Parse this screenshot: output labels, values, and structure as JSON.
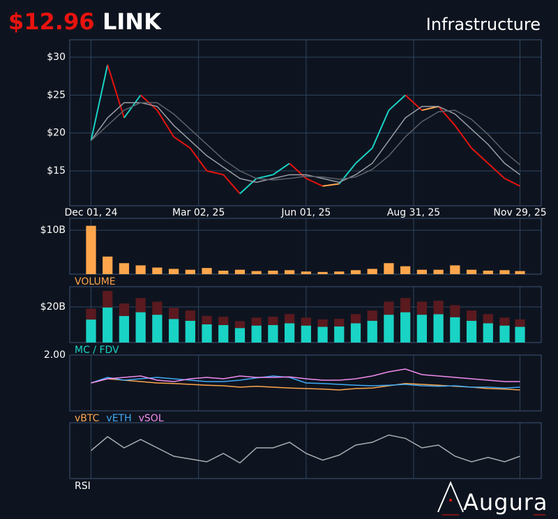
{
  "header": {
    "price": "$12.96",
    "symbol": "LINK",
    "sector": "Infrastructure"
  },
  "logo": "Augura",
  "chart_data": [
    {
      "type": "line",
      "x": [
        "2024-12-01",
        "2024-12-15",
        "2024-12-29",
        "2025-01-12",
        "2025-01-26",
        "2025-02-09",
        "2025-02-23",
        "2025-03-09",
        "2025-03-23",
        "2025-04-06",
        "2025-04-20",
        "2025-05-04",
        "2025-05-18",
        "2025-06-01",
        "2025-06-15",
        "2025-06-29",
        "2025-07-13",
        "2025-07-27",
        "2025-08-10",
        "2025-08-24",
        "2025-09-07",
        "2025-09-21",
        "2025-10-05",
        "2025-10-19",
        "2025-11-02",
        "2025-11-16",
        "2025-11-29"
      ],
      "xlim": [
        "2024-11-13",
        "2025-12-17"
      ],
      "xticks": [
        {
          "value": "2024-12-01",
          "label": "Dec 01, 24"
        },
        {
          "value": "2025-03-02",
          "label": "Mar 02, 25"
        },
        {
          "value": "2025-06-01",
          "label": "Jun 01, 25"
        },
        {
          "value": "2025-08-31",
          "label": "Aug 31, 25"
        },
        {
          "value": "2025-11-29",
          "label": "Nov 29, 25"
        }
      ],
      "ylim": [
        10.4,
        32.3
      ],
      "yticks": [
        {
          "value": 15,
          "label": "$15"
        },
        {
          "value": 20,
          "label": "$20"
        },
        {
          "value": 25,
          "label": "$25"
        },
        {
          "value": 30,
          "label": "$30"
        }
      ],
      "grid": true,
      "series": [
        {
          "color": "#ffa64d",
          "up_color": "#19d3c5",
          "down_color": "#e8130f",
          "values": [
            19,
            29,
            22,
            25,
            23,
            19.5,
            18,
            15,
            14.5,
            12,
            14,
            14.5,
            16,
            14,
            13,
            13.3,
            16,
            18,
            23,
            25,
            23,
            23.5,
            21,
            18,
            16,
            14,
            13
          ]
        },
        {
          "color": "#9a9ea6",
          "values": [
            19,
            22,
            24,
            24,
            23.5,
            21,
            19,
            17,
            15.5,
            14,
            13.5,
            14,
            14.5,
            14.5,
            14,
            13.5,
            14.5,
            16,
            19,
            22,
            23.5,
            23.5,
            22.5,
            20.5,
            18.5,
            16,
            14.5
          ]
        },
        {
          "color": "#5d636d",
          "values": [
            19,
            21,
            23,
            24,
            24,
            22.5,
            20.5,
            18.5,
            16.5,
            15,
            14,
            13.8,
            14,
            14.3,
            14.2,
            13.9,
            14.2,
            15.2,
            17,
            19.5,
            21.5,
            22.8,
            23,
            21.8,
            19.8,
            17.5,
            15.8
          ]
        }
      ]
    },
    {
      "type": "bar",
      "title": "VOLUME",
      "title_color": "#ffa64d",
      "color": "#ffa64d",
      "ylim": [
        0,
        12700000000.0
      ],
      "yticks": [
        {
          "value": 10000000000.0,
          "label": "$10B"
        }
      ],
      "values": [
        11000000000.0,
        4000000000.0,
        2500000000.0,
        2000000000.0,
        1500000000.0,
        1200000000.0,
        1000000000.0,
        1400000000.0,
        800000000.0,
        1000000000.0,
        700000000.0,
        800000000.0,
        900000000.0,
        600000000.0,
        500000000.0,
        600000000.0,
        900000000.0,
        1200000000.0,
        2500000000.0,
        1800000000.0,
        1000000000.0,
        1000000000.0,
        2000000000.0,
        1000000000.0,
        800000000.0,
        900000000.0,
        700000000.0
      ]
    },
    {
      "type": "bar",
      "title": "MC / FDV",
      "title_color": "#19d3c5",
      "ylim": [
        0,
        31400000000.0
      ],
      "yticks": [
        {
          "value": 20000000000.0,
          "label": "$20B"
        }
      ],
      "series": [
        {
          "color": "#5a1a1f",
          "values": [
            19000000000.0,
            29000000000.0,
            22000000000.0,
            25000000000.0,
            23000000000.0,
            19500000000.0,
            18000000000.0,
            15000000000.0,
            14500000000.0,
            12000000000.0,
            14000000000.0,
            14500000000.0,
            16000000000.0,
            14000000000.0,
            13000000000.0,
            13300000000.0,
            16000000000.0,
            18000000000.0,
            23000000000.0,
            25000000000.0,
            23000000000.0,
            23500000000.0,
            21000000000.0,
            18000000000.0,
            16000000000.0,
            14000000000.0,
            13000000000.0
          ]
        },
        {
          "color": "#19d3c5",
          "values": [
            12900000000.0,
            19700000000.0,
            14900000000.0,
            17000000000.0,
            15600000000.0,
            13200000000.0,
            12200000000.0,
            10200000000.0,
            9800000000.0,
            8100000000.0,
            9500000000.0,
            9800000000.0,
            10800000000.0,
            9500000000.0,
            8800000000.0,
            9000000000.0,
            10800000000.0,
            12200000000.0,
            15600000000.0,
            17000000000.0,
            15600000000.0,
            15900000000.0,
            14200000000.0,
            12200000000.0,
            10800000000.0,
            9500000000.0,
            8800000000.0
          ]
        }
      ]
    },
    {
      "type": "line",
      "ylim": [
        0,
        2
      ],
      "yticks": [
        {
          "value": 2,
          "label": "2.00"
        }
      ],
      "series": [
        {
          "name": "vBTC",
          "color": "#ffa64d",
          "values": [
            1,
            1.15,
            1.1,
            1.05,
            1,
            0.98,
            0.95,
            0.92,
            0.9,
            0.85,
            0.88,
            0.85,
            0.82,
            0.8,
            0.78,
            0.75,
            0.8,
            0.82,
            0.9,
            0.98,
            0.95,
            0.92,
            0.88,
            0.85,
            0.8,
            0.78,
            0.75
          ]
        },
        {
          "name": "vETH",
          "color": "#3fa9f5",
          "values": [
            1,
            1.2,
            1.1,
            1.15,
            1.2,
            1.15,
            1.1,
            1.05,
            1.05,
            1.1,
            1.18,
            1.25,
            1.2,
            1,
            0.98,
            0.95,
            0.92,
            0.9,
            0.92,
            0.95,
            0.9,
            0.88,
            0.9,
            0.85,
            0.85,
            0.82,
            0.85
          ]
        },
        {
          "name": "vSOL",
          "color": "#f08cf0",
          "values": [
            1,
            1.15,
            1.2,
            1.25,
            1.1,
            1.05,
            1.15,
            1.2,
            1.15,
            1.25,
            1.2,
            1.2,
            1.22,
            1.15,
            1.1,
            1.1,
            1.15,
            1.25,
            1.4,
            1.5,
            1.3,
            1.25,
            1.2,
            1.15,
            1.1,
            1.05,
            1.05
          ]
        }
      ]
    },
    {
      "type": "line",
      "title": "RSI",
      "title_color": "#ffffff",
      "ylim": [
        0,
        100
      ],
      "series": [
        {
          "color": "#a9adb3",
          "values": [
            50,
            75,
            55,
            70,
            55,
            40,
            35,
            30,
            45,
            28,
            55,
            55,
            65,
            45,
            33,
            42,
            60,
            65,
            78,
            72,
            55,
            60,
            40,
            30,
            38,
            30,
            40
          ]
        }
      ]
    }
  ]
}
